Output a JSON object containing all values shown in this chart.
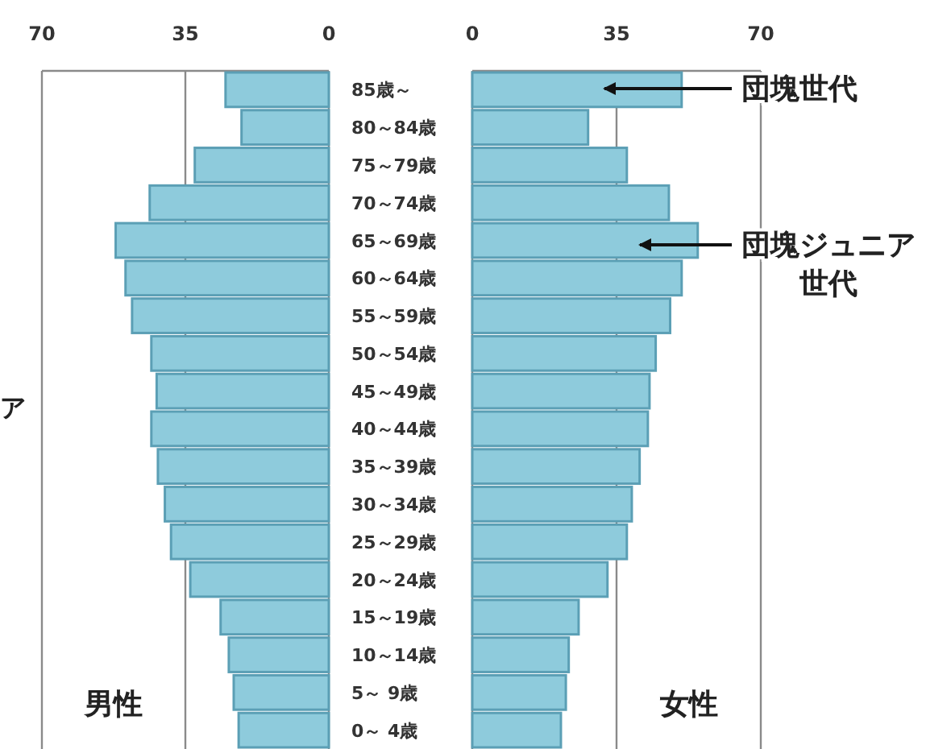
{
  "chart_data": [
    {
      "type": "bar",
      "orientation": "horizontal",
      "categories": [
        "85歳～",
        "80～84歳",
        "75～79歳",
        "70～74歳",
        "65～69歳",
        "60～64歳",
        "55～59歳",
        "50～54歳",
        "45～49歳",
        "40～44歳",
        "35～39歳",
        "30～34歳",
        "25～29歳",
        "20～24歳",
        "15～19歳",
        "10～14歳",
        "5～ 9歳",
        "0～ 4歳"
      ],
      "series": [
        {
          "name": "男性",
          "color": "#8ecbdc",
          "values": [
            25.2,
            21.3,
            32.7,
            43.7,
            52,
            49.6,
            48,
            43.3,
            42,
            43.3,
            41.7,
            40,
            38.5,
            33.8,
            26.4,
            24.4,
            23.2,
            22
          ]
        }
      ],
      "xlim": [
        70,
        0
      ],
      "xticks": [
        70,
        35,
        0
      ],
      "grid": "x",
      "annotations": [
        "ア"
      ]
    },
    {
      "type": "bar",
      "orientation": "horizontal",
      "categories": [
        "85歳～",
        "80～84歳",
        "75～79歳",
        "70～74歳",
        "65～69歳",
        "60～64歳",
        "55～59歳",
        "50～54歳",
        "45～49歳",
        "40～44歳",
        "35～39歳",
        "30～34歳",
        "25～29歳",
        "20～24歳",
        "15～19歳",
        "10～14歳",
        "5～ 9歳",
        "0～ 4歳"
      ],
      "series": [
        {
          "name": "女性",
          "color": "#8ecbdc",
          "values": [
            50.8,
            28.1,
            37.5,
            47.7,
            54.7,
            50.8,
            48,
            44.5,
            43,
            42.6,
            40.6,
            38.7,
            37.5,
            32.8,
            25.8,
            23.4,
            22.7,
            21.5
          ]
        }
      ],
      "xlim": [
        0,
        70
      ],
      "xticks": [
        0,
        35,
        70
      ],
      "grid": "x",
      "tick_labels": "x",
      "annotations": [
        "団塊世代",
        "団塊ジュニア世代"
      ]
    }
  ]
}
